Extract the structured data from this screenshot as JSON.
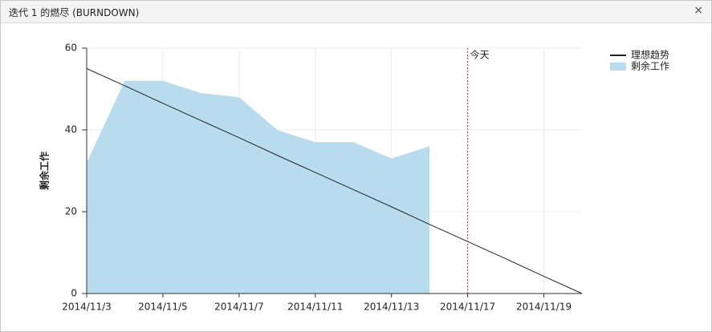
{
  "header": {
    "title": "迭代 1 的燃尽 (BURNDOWN)",
    "close": "×"
  },
  "chart_data": {
    "type": "burndown",
    "y_label": "剩余工作",
    "categories": [
      "2014/11/3",
      null,
      "2014/11/5",
      null,
      "2014/11/7",
      null,
      "2014/11/11",
      null,
      "2014/11/13",
      null,
      "2014/11/17",
      null,
      "2014/11/19",
      null
    ],
    "series": [
      {
        "name": "理想趋势",
        "kind": "line",
        "color": "#222222",
        "values": [
          55,
          50.8,
          46.5,
          42.3,
          38.1,
          33.8,
          29.6,
          25.4,
          21.2,
          16.9,
          12.7,
          8.5,
          4.2,
          0
        ]
      },
      {
        "name": "剩余工作",
        "kind": "area",
        "color": "#b8dced",
        "values": [
          32,
          52,
          52,
          49,
          48,
          40,
          37,
          37,
          33,
          36,
          null,
          null,
          null,
          null
        ]
      }
    ],
    "today_marker": {
      "text": "今天",
      "category_index": 10,
      "color": "#c0315a"
    },
    "ylim": [
      0,
      60
    ],
    "yticks": [
      0,
      20,
      40,
      60
    ],
    "grid": true,
    "legend": "right-top"
  }
}
